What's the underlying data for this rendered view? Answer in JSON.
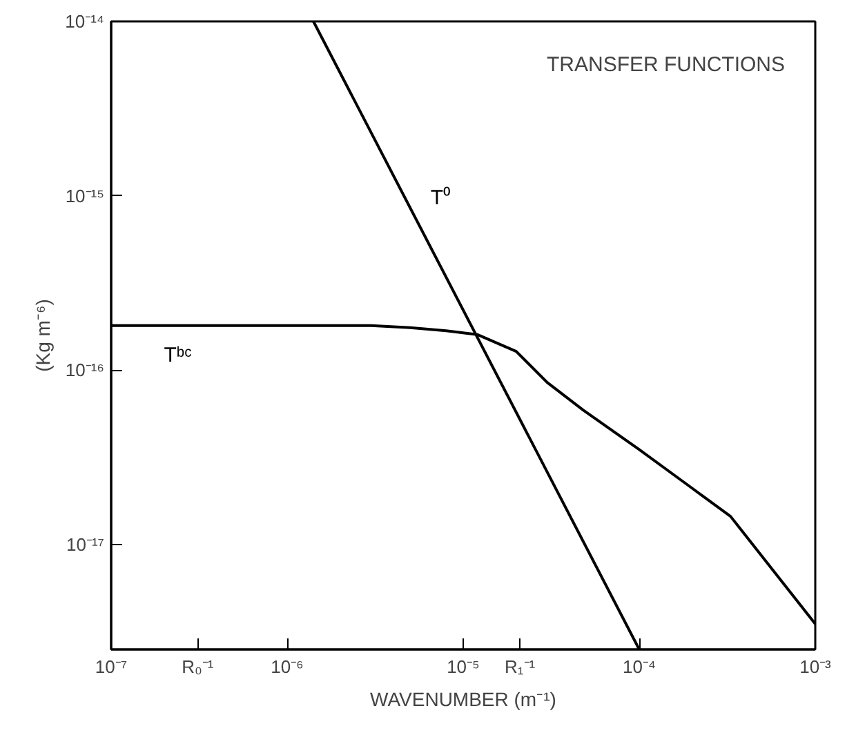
{
  "chart_data": {
    "type": "line",
    "xlabel": "WAVENUMBER (m⁻¹)",
    "ylabel": "(Kg m⁻⁶)",
    "annotations": [
      "TRANSFER FUNCTIONS"
    ],
    "log": "xy",
    "grid": false,
    "marker": "none",
    "line_style": "solid",
    "xlim": [
      1e-07,
      0.001
    ],
    "ylim": [
      2.5e-18,
      1e-14
    ],
    "xticks": [
      {
        "value": 1e-07,
        "label": "10⁻⁷"
      },
      {
        "value": 3.1e-07,
        "label": "R₀⁻¹"
      },
      {
        "value": 1e-06,
        "label": "10⁻⁶"
      },
      {
        "value": 1e-05,
        "label": "10⁻⁵"
      },
      {
        "value": 2.1e-05,
        "label": "R₁⁻¹"
      },
      {
        "value": 0.0001,
        "label": "10⁻⁴"
      },
      {
        "value": 0.001,
        "label": "10⁻³"
      }
    ],
    "yticks": [
      {
        "value": 1e-17,
        "label": "10⁻¹⁷"
      },
      {
        "value": 1e-16,
        "label": "10⁻¹⁶"
      },
      {
        "value": 1e-15,
        "label": "10⁻¹⁵"
      },
      {
        "value": 1e-14,
        "label": "10⁻¹⁴"
      }
    ],
    "series": [
      {
        "name": "T⁰",
        "color": "#000000",
        "x": [
          1.41e-06,
          0.0001
        ],
        "values": [
          1e-14,
          2.5e-18
        ]
      },
      {
        "name": "Tᵇᶜ",
        "color": "#000000",
        "x": [
          1e-07,
          1e-06,
          3e-06,
          5e-06,
          8e-06,
          1.2e-05,
          2e-05,
          3e-05,
          4.8e-05,
          0.0001,
          0.0002,
          0.00033,
          0.001
        ],
        "values": [
          1.8e-16,
          1.8e-16,
          1.8e-16,
          1.75e-16,
          1.68e-16,
          1.6e-16,
          1.28e-16,
          8.5e-17,
          5.9e-17,
          3.5e-17,
          2.1e-17,
          1.45e-17,
          3.5e-18
        ]
      }
    ]
  }
}
